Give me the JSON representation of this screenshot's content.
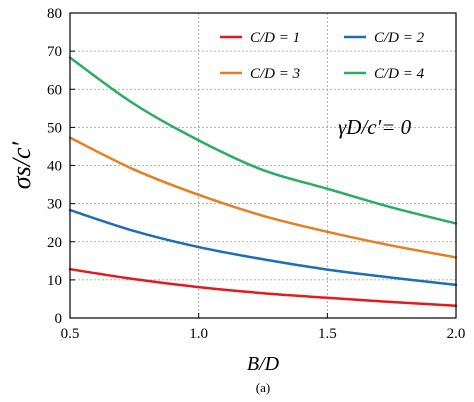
{
  "chart_data": {
    "type": "line",
    "title": "",
    "xlabel": "B/D",
    "ylabel": "σs/c′",
    "xlim": [
      0.5,
      2.0
    ],
    "ylim": [
      0,
      80
    ],
    "x_ticks": [
      0.5,
      1.0,
      1.5,
      2.0
    ],
    "y_ticks": [
      0,
      10,
      20,
      30,
      40,
      50,
      60,
      70,
      80
    ],
    "grid": true,
    "grid_style": "dotted",
    "legend_placement": "top-right",
    "annotation": "γD/c′= 0",
    "caption": "(a)",
    "x": [
      0.5,
      0.75,
      1.0,
      1.25,
      1.5,
      1.75,
      2.0
    ],
    "series": [
      {
        "name": "C/D = 1",
        "color": "#e41a1c",
        "values": [
          12.8,
          10.2,
          8.1,
          6.5,
          5.3,
          4.2,
          3.2
        ]
      },
      {
        "name": "C/D = 2",
        "color": "#1f6eb5",
        "values": [
          28.3,
          22.8,
          18.6,
          15.4,
          12.7,
          10.6,
          8.7
        ]
      },
      {
        "name": "C/D = 3",
        "color": "#e67e22",
        "values": [
          47.3,
          38.9,
          32.3,
          26.8,
          22.6,
          19.0,
          15.9
        ]
      },
      {
        "name": "C/D = 4",
        "color": "#27ae60",
        "values": [
          68.3,
          56.1,
          46.6,
          38.8,
          33.9,
          29.0,
          24.8
        ]
      }
    ]
  }
}
